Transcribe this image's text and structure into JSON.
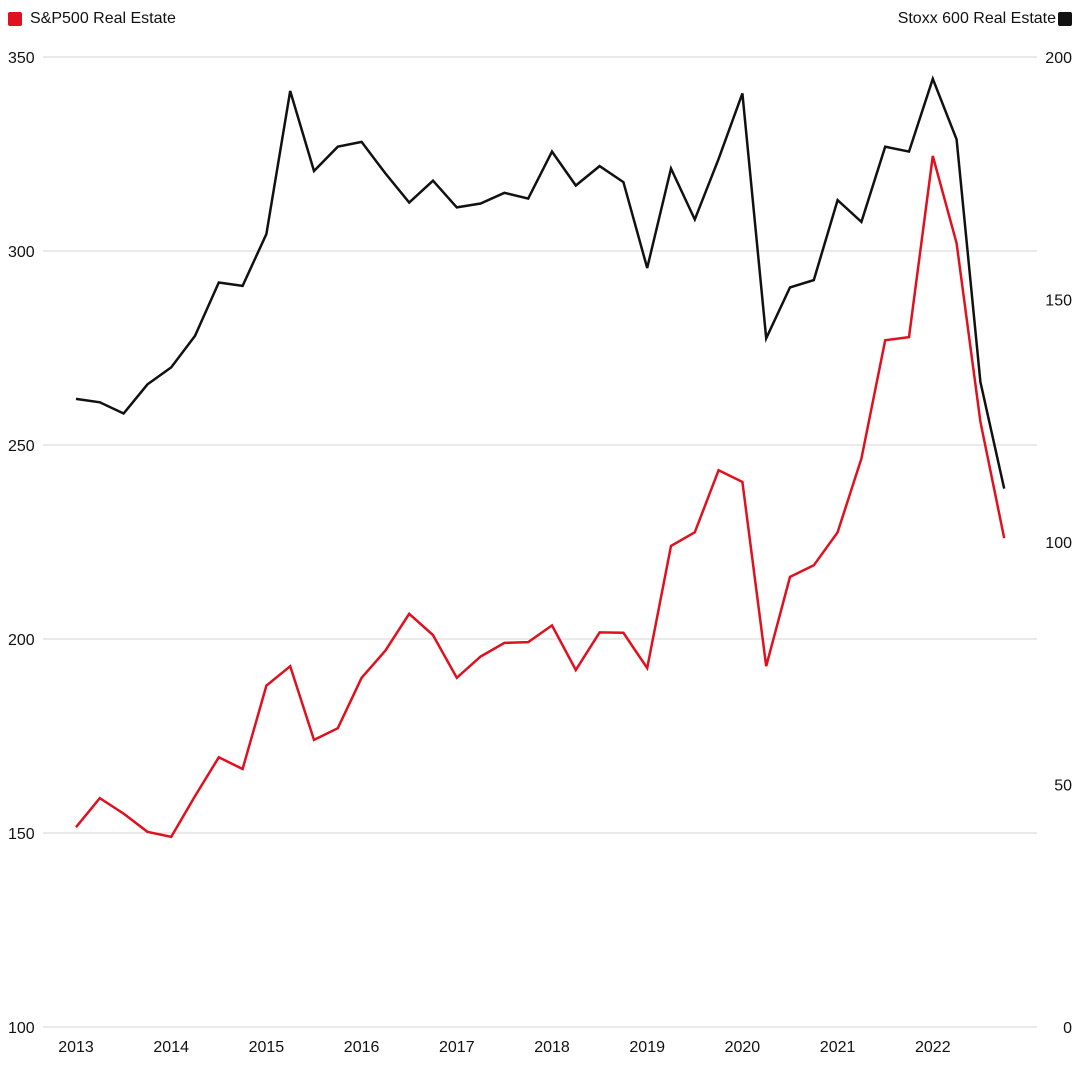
{
  "chart_data": {
    "type": "line",
    "legend": {
      "placement": "top"
    },
    "grid": true,
    "x_ticks": [
      "2013",
      "2014",
      "2015",
      "2016",
      "2017",
      "2018",
      "2019",
      "2020",
      "2021",
      "2022"
    ],
    "x_range": [
      2013,
      2023
    ],
    "y_left": {
      "range": [
        100,
        350
      ],
      "ticks": [
        100,
        150,
        200,
        250,
        300,
        350
      ]
    },
    "y_right": {
      "range": [
        0,
        200
      ],
      "ticks": [
        0,
        50,
        100,
        150,
        200
      ]
    },
    "series": [
      {
        "name": "S&P500 Real Estate",
        "axis": "left",
        "color": "#e0101e",
        "x": [
          2013.0,
          2013.25,
          2013.5,
          2013.75,
          2014.0,
          2014.25,
          2014.5,
          2014.75,
          2015.0,
          2015.25,
          2015.5,
          2015.75,
          2016.0,
          2016.25,
          2016.5,
          2016.75,
          2017.0,
          2017.25,
          2017.5,
          2017.75,
          2018.0,
          2018.25,
          2018.5,
          2018.75,
          2019.0,
          2019.25,
          2019.5,
          2019.75,
          2020.0,
          2020.25,
          2020.5,
          2020.75,
          2021.0,
          2021.25,
          2021.5,
          2021.75,
          2022.0,
          2022.25,
          2022.5,
          2022.75
        ],
        "values": [
          151.5,
          159,
          155,
          150.3,
          149,
          159.5,
          169.5,
          166.5,
          188,
          193,
          174,
          177,
          190,
          197,
          206.5,
          201,
          190,
          195.5,
          199,
          199.2,
          203.5,
          192,
          201.7,
          201.6,
          192.5,
          224,
          227.5,
          243.5,
          240.5,
          193,
          216,
          219,
          227.5,
          246.5,
          277,
          277.8,
          324.5,
          302,
          256,
          226
        ]
      },
      {
        "name": "Stoxx 600 Real Estate",
        "axis": "right",
        "color": "#111111",
        "x": [
          2013.0,
          2013.25,
          2013.5,
          2013.75,
          2014.0,
          2014.25,
          2014.5,
          2014.75,
          2015.0,
          2015.25,
          2015.5,
          2015.75,
          2016.0,
          2016.25,
          2016.5,
          2016.75,
          2017.0,
          2017.25,
          2017.5,
          2017.75,
          2018.0,
          2018.25,
          2018.5,
          2018.75,
          2019.0,
          2019.25,
          2019.5,
          2019.75,
          2020.0,
          2020.25,
          2020.5,
          2020.75,
          2021.0,
          2021.25,
          2021.5,
          2021.75,
          2022.0,
          2022.25,
          2022.5,
          2022.75
        ],
        "values": [
          129.5,
          128.8,
          126.5,
          132.5,
          136,
          142.5,
          153.5,
          152.8,
          163.5,
          193,
          176.5,
          181.5,
          182.5,
          176,
          170,
          174.5,
          169,
          169.8,
          172,
          170.8,
          180.5,
          173.5,
          177.5,
          174.2,
          156.5,
          177,
          166.5,
          179,
          192.5,
          142,
          152.5,
          154,
          170.5,
          166,
          181.5,
          180.5,
          195.5,
          183,
          133,
          111
        ]
      }
    ]
  }
}
